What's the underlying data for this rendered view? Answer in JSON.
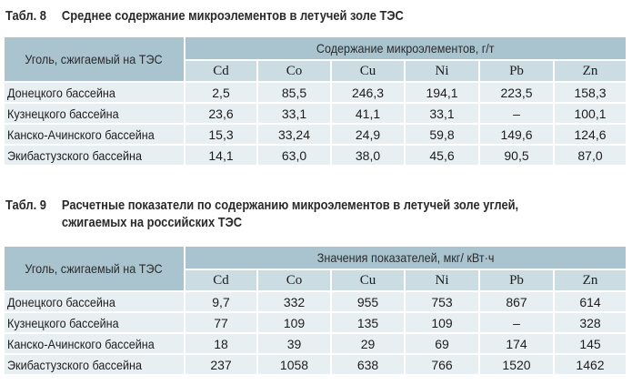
{
  "table8": {
    "num": "Табл. 8",
    "title": "Среднее содержание микроэлементов в летучей золе ТЭС",
    "first_header": "Уголь, сжигаемый на ТЭС",
    "group_header": "Содержание микроэлементов, г/т",
    "elements": [
      "Cd",
      "Co",
      "Cu",
      "Ni",
      "Pb",
      "Zn"
    ],
    "rows": [
      {
        "name": "Донецкого бассейна",
        "values": [
          "2,5",
          "85,5",
          "246,3",
          "194,1",
          "223,5",
          "158,3"
        ]
      },
      {
        "name": "Кузнецкого бассейна",
        "values": [
          "23,6",
          "33,1",
          "41,1",
          "33,1",
          "–",
          "100,1"
        ]
      },
      {
        "name": "Канско-Ачинского бассейна",
        "values": [
          "15,3",
          "33,24",
          "24,9",
          "59,8",
          "149,6",
          "124,6"
        ]
      },
      {
        "name": "Экибастузского бассейна",
        "values": [
          "14,1",
          "63,0",
          "38,0",
          "45,6",
          "90,5",
          "87,0"
        ]
      }
    ]
  },
  "table9": {
    "num": "Табл. 9",
    "title_line1": "Расчетные показатели по содержанию микроэлементов в летучей золе углей,",
    "title_line2": "сжигаемых на российских ТЭС",
    "first_header": "Уголь, сжигаемый на ТЭС",
    "group_header": "Значения показателей, мкг/ кВт·ч",
    "elements": [
      "Cd",
      "Co",
      "Cu",
      "Ni",
      "Pb",
      "Zn"
    ],
    "rows": [
      {
        "name": "Донецкого бассейна",
        "values": [
          "9,7",
          "332",
          "955",
          "753",
          "867",
          "614"
        ]
      },
      {
        "name": "Кузнецкого бассейна",
        "values": [
          "77",
          "109",
          "135",
          "109",
          "–",
          "328"
        ]
      },
      {
        "name": "Канско-Ачинского бассейна",
        "values": [
          "18",
          "39",
          "29",
          "69",
          "174",
          "145"
        ]
      },
      {
        "name": "Экибастузского бассейна",
        "values": [
          "237",
          "1058",
          "638",
          "766",
          "1520",
          "1462"
        ]
      }
    ]
  }
}
